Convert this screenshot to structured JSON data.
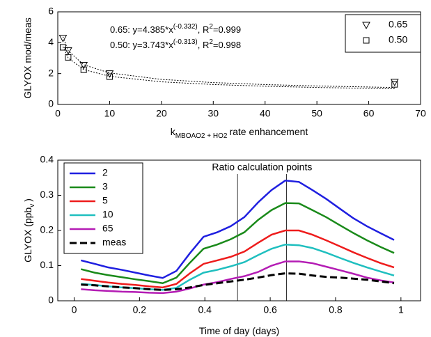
{
  "chart_data": [
    {
      "type": "scatter",
      "xlabel": {
        "main": "k",
        "sub": "MBOAO2 + HO2",
        "rest": "rate enhancement"
      },
      "ylabel": "GLYOX mod/meas",
      "xlim": [
        0,
        70
      ],
      "xticks": [
        0,
        10,
        20,
        30,
        40,
        50,
        60,
        70
      ],
      "ylim": [
        0,
        6
      ],
      "yticks": [
        0,
        2,
        4,
        6
      ],
      "legend": "upper right",
      "annotations": [
        [
          "0.65: y=4.385*x",
          "(-0.332)",
          ", R",
          "2",
          "=0.999"
        ],
        [
          "0.50: y=3.743*x",
          "(-0.313)",
          ", R",
          "2",
          "=0.998"
        ]
      ],
      "series": [
        {
          "name": "0.65",
          "color": "#000000",
          "marker": "triangle-down",
          "x": [
            1,
            2,
            5,
            10,
            65
          ],
          "values": [
            4.3,
            3.5,
            2.55,
            2.0,
            1.45
          ]
        },
        {
          "name": "0.50",
          "color": "#000000",
          "marker": "square",
          "x": [
            1,
            2,
            5,
            10,
            65
          ],
          "values": [
            3.7,
            3.05,
            2.25,
            1.8,
            1.3
          ]
        },
        {
          "color": "#000000",
          "style": "dotted",
          "x": [
            1,
            2,
            5,
            10,
            20,
            30,
            40,
            50,
            65
          ],
          "values": [
            4.385,
            3.483,
            2.57,
            2.042,
            1.622,
            1.418,
            1.288,
            1.197,
            1.097
          ]
        },
        {
          "color": "#000000",
          "style": "dotted",
          "x": [
            1,
            2,
            5,
            10,
            20,
            30,
            40,
            50,
            65
          ],
          "values": [
            3.743,
            3.013,
            2.262,
            1.821,
            1.465,
            1.291,
            1.18,
            1.1,
            1.013
          ]
        }
      ]
    },
    {
      "type": "line",
      "xlabel": {
        "main": "Time of day (days)"
      },
      "ylabel": {
        "main": "GLYOX (ppb",
        "sub": "v",
        "rest": ")"
      },
      "xlim": [
        -0.05,
        1.06
      ],
      "xticks": [
        0,
        0.2,
        0.4,
        0.6,
        0.8,
        1
      ],
      "ylim": [
        0,
        0.4
      ],
      "yticks": [
        0,
        0.1,
        0.2,
        0.3,
        0.4
      ],
      "legend": "upper left",
      "vlines": [
        0.5,
        0.65
      ],
      "vline_label": "Ratio calculation points",
      "x": [
        0.021,
        0.063,
        0.104,
        0.146,
        0.188,
        0.229,
        0.271,
        0.313,
        0.354,
        0.396,
        0.438,
        0.479,
        0.521,
        0.563,
        0.604,
        0.646,
        0.688,
        0.729,
        0.771,
        0.813,
        0.854,
        0.896,
        0.938,
        0.979
      ],
      "series": [
        {
          "name": "2",
          "color": "#1f1fe0",
          "style": "solid",
          "values": [
            0.115,
            0.105,
            0.095,
            0.088,
            0.08,
            0.072,
            0.065,
            0.085,
            0.135,
            0.182,
            0.195,
            0.212,
            0.238,
            0.28,
            0.315,
            0.342,
            0.338,
            0.315,
            0.29,
            0.262,
            0.235,
            0.212,
            0.192,
            0.173
          ]
        },
        {
          "name": "3",
          "color": "#1a8a1a",
          "style": "solid",
          "values": [
            0.09,
            0.08,
            0.073,
            0.067,
            0.061,
            0.056,
            0.05,
            0.066,
            0.108,
            0.148,
            0.16,
            0.175,
            0.195,
            0.23,
            0.258,
            0.278,
            0.277,
            0.258,
            0.238,
            0.215,
            0.193,
            0.172,
            0.153,
            0.136
          ]
        },
        {
          "name": "5",
          "color": "#ee1c1c",
          "style": "solid",
          "values": [
            0.062,
            0.057,
            0.052,
            0.048,
            0.045,
            0.041,
            0.038,
            0.048,
            0.078,
            0.105,
            0.115,
            0.125,
            0.14,
            0.165,
            0.188,
            0.2,
            0.2,
            0.188,
            0.172,
            0.155,
            0.138,
            0.122,
            0.107,
            0.095
          ]
        },
        {
          "name": "10",
          "color": "#1fbfbf",
          "style": "solid",
          "values": [
            0.048,
            0.045,
            0.041,
            0.038,
            0.036,
            0.033,
            0.031,
            0.037,
            0.06,
            0.08,
            0.088,
            0.098,
            0.11,
            0.13,
            0.148,
            0.16,
            0.158,
            0.15,
            0.137,
            0.122,
            0.108,
            0.095,
            0.083,
            0.072
          ]
        },
        {
          "name": "65",
          "color": "#b41cb4",
          "style": "solid",
          "values": [
            0.033,
            0.03,
            0.028,
            0.026,
            0.025,
            0.023,
            0.022,
            0.026,
            0.035,
            0.046,
            0.053,
            0.062,
            0.07,
            0.082,
            0.1,
            0.112,
            0.112,
            0.107,
            0.097,
            0.087,
            0.077,
            0.066,
            0.058,
            0.052
          ]
        },
        {
          "name": "meas",
          "color": "#000000",
          "style": "dashed",
          "values": [
            0.046,
            0.044,
            0.041,
            0.038,
            0.036,
            0.033,
            0.031,
            0.033,
            0.038,
            0.045,
            0.05,
            0.055,
            0.06,
            0.066,
            0.073,
            0.078,
            0.077,
            0.072,
            0.068,
            0.066,
            0.063,
            0.06,
            0.055,
            0.05
          ]
        }
      ]
    }
  ]
}
